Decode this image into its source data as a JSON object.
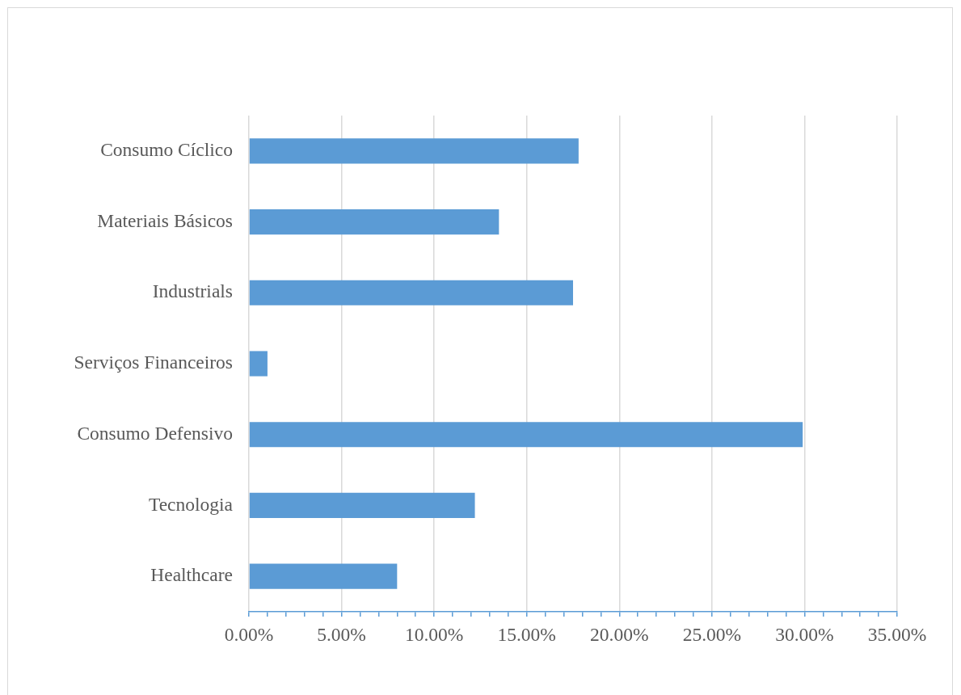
{
  "chart_data": {
    "type": "bar",
    "orientation": "horizontal",
    "categories": [
      "Consumo Cíclico",
      "Materiais Básicos",
      "Industrials",
      "Serviços Financeiros",
      "Consumo Defensivo",
      "Tecnologia",
      "Healthcare"
    ],
    "values": [
      17.8,
      13.5,
      17.5,
      1.0,
      29.9,
      12.2,
      8.0
    ],
    "color": "#5b9bd5",
    "xlim": [
      0,
      35
    ],
    "xticks": [
      {
        "value": 0,
        "label": "0.00%"
      },
      {
        "value": 1,
        "label": null
      },
      {
        "value": 2,
        "label": null
      },
      {
        "value": 3,
        "label": null
      },
      {
        "value": 4,
        "label": null
      },
      {
        "value": 5,
        "label": "5.00%"
      },
      {
        "value": 6,
        "label": null
      },
      {
        "value": 7,
        "label": null
      },
      {
        "value": 8,
        "label": null
      },
      {
        "value": 9,
        "label": null
      },
      {
        "value": 10,
        "label": "10.00%"
      },
      {
        "value": 11,
        "label": null
      },
      {
        "value": 12,
        "label": null
      },
      {
        "value": 13,
        "label": null
      },
      {
        "value": 14,
        "label": null
      },
      {
        "value": 15,
        "label": "15.00%"
      },
      {
        "value": 16,
        "label": null
      },
      {
        "value": 17,
        "label": null
      },
      {
        "value": 18,
        "label": null
      },
      {
        "value": 19,
        "label": null
      },
      {
        "value": 20,
        "label": "20.00%"
      },
      {
        "value": 21,
        "label": null
      },
      {
        "value": 22,
        "label": null
      },
      {
        "value": 23,
        "label": null
      },
      {
        "value": 24,
        "label": null
      },
      {
        "value": 25,
        "label": "25.00%"
      },
      {
        "value": 26,
        "label": null
      },
      {
        "value": 27,
        "label": null
      },
      {
        "value": 28,
        "label": null
      },
      {
        "value": 29,
        "label": null
      },
      {
        "value": 30,
        "label": "30.00%"
      },
      {
        "value": 31,
        "label": null
      },
      {
        "value": 32,
        "label": null
      },
      {
        "value": 33,
        "label": null
      },
      {
        "value": 34,
        "label": null
      },
      {
        "value": 35,
        "label": "35.00%"
      }
    ],
    "grid": "x"
  }
}
